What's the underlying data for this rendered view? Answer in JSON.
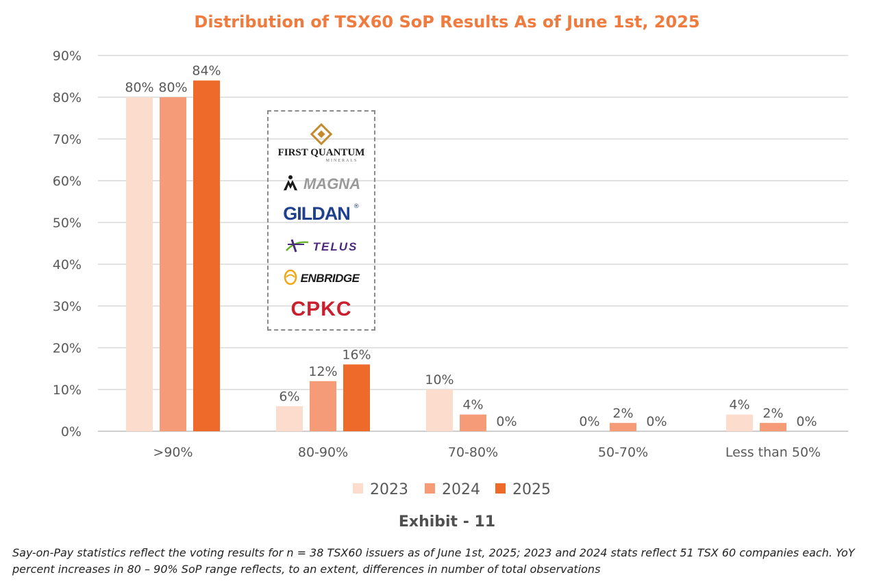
{
  "chart_data": {
    "type": "bar",
    "title": "Distribution of TSX60 SoP Results As of June 1st, 2025",
    "xlabel": "",
    "ylabel": "",
    "ylim": [
      0,
      90
    ],
    "y_ticks": [
      "0%",
      "10%",
      "20%",
      "30%",
      "40%",
      "50%",
      "60%",
      "70%",
      "80%",
      "90%"
    ],
    "grid": true,
    "legend_position": "bottom-center",
    "categories": [
      ">90%",
      "80-90%",
      "70-80%",
      "50-70%",
      "Less than 50%"
    ],
    "series": [
      {
        "name": "2023",
        "color": "#fbdccd",
        "values": [
          80,
          6,
          10,
          0,
          4
        ],
        "labels": [
          "80%",
          "6%",
          "10%",
          "0%",
          "4%"
        ]
      },
      {
        "name": "2024",
        "color": "#f59b78",
        "values": [
          80,
          12,
          4,
          2,
          2
        ],
        "labels": [
          "80%",
          "12%",
          "4%",
          "2%",
          "2%"
        ]
      },
      {
        "name": "2025",
        "color": "#ee6a2a",
        "values": [
          84,
          16,
          0,
          0,
          0
        ],
        "labels": [
          "84%",
          "16%",
          "0%",
          "0%",
          "0%"
        ]
      }
    ]
  },
  "logos": [
    {
      "name": "First Quantum Minerals",
      "text": "FIRST QUANTUM",
      "subtext": "MINERALS",
      "color": "#1a1a1a",
      "accent": "#c68a2e"
    },
    {
      "name": "Magna",
      "text": "MAGNA",
      "color": "#9a9a9a",
      "accent": "#1a1a1a"
    },
    {
      "name": "Gildan",
      "text": "GILDAN",
      "color": "#1f3f8f"
    },
    {
      "name": "Telus",
      "text": "TELUS",
      "color": "#4b2a7b",
      "accent": "#66b22e"
    },
    {
      "name": "Enbridge",
      "text": "ENBRIDGE",
      "color": "#1a1a1a",
      "accent": "#f0a70f"
    },
    {
      "name": "CPKC",
      "text": "CPKC",
      "color": "#c8202f"
    }
  ],
  "exhibit": "Exhibit - 11",
  "footnote": "Say-on-Pay statistics reflect the voting results for n = 38 TSX60 issuers as of June 1st, 2025; 2023 and 2024 stats reflect 51 TSX 60 companies each. YoY percent increases in 80 – 90% SoP range reflects, to an extent, differences in number of total observations"
}
